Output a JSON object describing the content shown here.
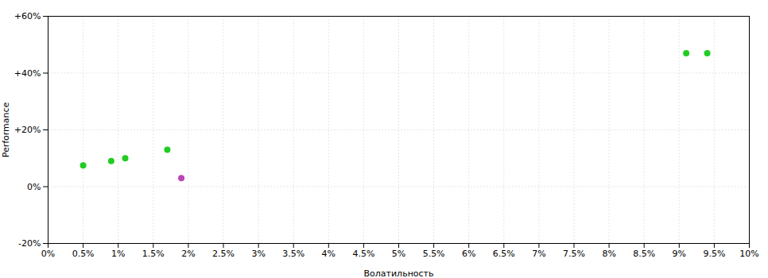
{
  "chart_data": {
    "type": "scatter",
    "xlabel": "Волатильность",
    "ylabel": "Performance",
    "xlim": [
      0,
      0.1
    ],
    "ylim": [
      -0.2,
      0.6
    ],
    "xticks": [
      {
        "value": 0.0,
        "label": "0%"
      },
      {
        "value": 0.005,
        "label": "0.5%"
      },
      {
        "value": 0.01,
        "label": "1%"
      },
      {
        "value": 0.015,
        "label": "1.5%"
      },
      {
        "value": 0.02,
        "label": "2%"
      },
      {
        "value": 0.025,
        "label": "2.5%"
      },
      {
        "value": 0.03,
        "label": "3%"
      },
      {
        "value": 0.035,
        "label": "3.5%"
      },
      {
        "value": 0.04,
        "label": "4%"
      },
      {
        "value": 0.045,
        "label": "4.5%"
      },
      {
        "value": 0.05,
        "label": "5%"
      },
      {
        "value": 0.055,
        "label": "5.5%"
      },
      {
        "value": 0.06,
        "label": "6%"
      },
      {
        "value": 0.065,
        "label": "6.5%"
      },
      {
        "value": 0.07,
        "label": "7%"
      },
      {
        "value": 0.075,
        "label": "7.5%"
      },
      {
        "value": 0.08,
        "label": "8%"
      },
      {
        "value": 0.085,
        "label": "8.5%"
      },
      {
        "value": 0.09,
        "label": "9%"
      },
      {
        "value": 0.095,
        "label": "9.5%"
      },
      {
        "value": 0.1,
        "label": "10%"
      }
    ],
    "yticks": [
      {
        "value": -0.2,
        "label": "-20%"
      },
      {
        "value": 0.0,
        "label": "0%"
      },
      {
        "value": 0.2,
        "label": "+20%"
      },
      {
        "value": 0.4,
        "label": "+40%"
      },
      {
        "value": 0.6,
        "label": "+60%"
      }
    ],
    "grid": true,
    "series": [
      {
        "color": "#22cc22",
        "x": [
          0.005,
          0.009,
          0.011,
          0.017,
          0.091,
          0.094
        ],
        "values": [
          0.075,
          0.09,
          0.1,
          0.13,
          0.47,
          0.47
        ]
      },
      {
        "color": "#bb44bb",
        "x": [
          0.019
        ],
        "values": [
          0.03
        ]
      }
    ]
  }
}
